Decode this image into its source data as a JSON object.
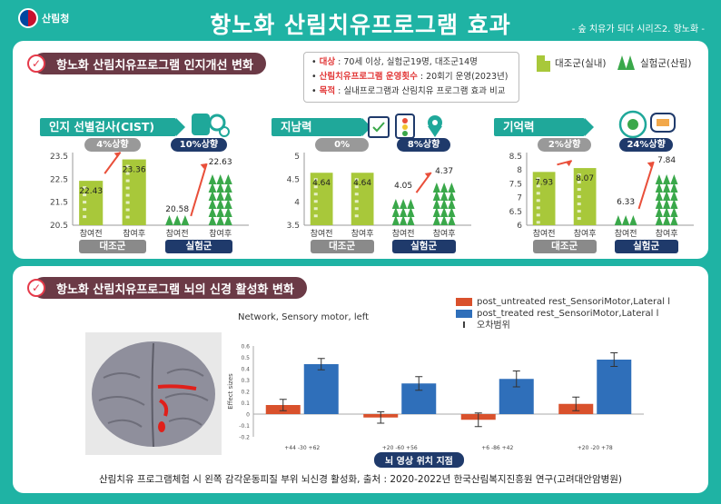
{
  "header": {
    "logo_text": "산림청",
    "title": "항노화 산림치유프로그램 효과",
    "series": "- 숲 치유가 되다 시리즈2. 항노화 -"
  },
  "section1": {
    "title": "항노화 산림치유프로그램 인지개선 변화",
    "info": {
      "line1_label": "대상",
      "line1_value": ": 70세 이상, 실험군19명, 대조군14명",
      "line2_label": "산림치유프로그램 운영횟수",
      "line2_value": ": 20회기 운영(2023년)",
      "line3_label": "목적",
      "line3_value": ": 실내프로그램과 산림치유 프로그램 효과 비교"
    },
    "legend": {
      "control": "대조군(실내)",
      "experimental": "실험군(산림)"
    },
    "colors": {
      "control": "#a8c83a",
      "experimental": "#3aa84a",
      "arrow": "#e94f3a"
    },
    "x_labels": {
      "before": "참여전",
      "after": "참여후"
    },
    "groups": {
      "control": "대조군",
      "experimental": "실험군"
    }
  },
  "section2": {
    "title": "항노화 산림치유프로그램 뇌의 신경 활성화 변화",
    "network_title": "Network, Sensory motor, left",
    "legend": {
      "untreated": "post_untreated rest_SensoriMotor,Lateral l",
      "treated": "post_treated rest_SensoriMotor,Lateral l",
      "error": "오차범위"
    },
    "colors": {
      "untreated": "#d9512c",
      "treated": "#2f6fba"
    },
    "xcaption": "뇌 영상 위치 지점",
    "ylabel": "Effect sizes",
    "footer": "산림치유 프로그램체험 시 왼쪽 감각운동피질 부위 뇌신경 활성화, 출처 : 2020-2022년 한국산림복지진흥원 연구(고려대안암병원)"
  },
  "chart_data": [
    {
      "type": "bar",
      "title": "인지 선별검사(CIST)",
      "categories": [
        "대조군 참여전",
        "대조군 참여후",
        "실험군 참여전",
        "실험군 참여후"
      ],
      "values": [
        22.43,
        23.36,
        20.58,
        22.63
      ],
      "ylim": [
        20.5,
        23.5
      ],
      "yticks": [
        20.5,
        21.5,
        22.5,
        23.5
      ],
      "control_change": "4%상향",
      "experimental_change": "10%상향"
    },
    {
      "type": "bar",
      "title": "지남력",
      "categories": [
        "대조군 참여전",
        "대조군 참여후",
        "실험군 참여전",
        "실험군 참여후"
      ],
      "values": [
        4.64,
        4.64,
        4.05,
        4.37
      ],
      "ylim": [
        3.5,
        5
      ],
      "yticks": [
        3.5,
        4,
        4.5,
        5
      ],
      "control_change": "0%",
      "experimental_change": "8%상향"
    },
    {
      "type": "bar",
      "title": "기억력",
      "categories": [
        "대조군 참여전",
        "대조군 참여후",
        "실험군 참여전",
        "실험군 참여후"
      ],
      "values": [
        7.93,
        8.07,
        6.33,
        7.84
      ],
      "ylim": [
        6,
        8.5
      ],
      "yticks": [
        6,
        6.5,
        7,
        7.5,
        8,
        8.5
      ],
      "control_change": "2%상향",
      "experimental_change": "24%상향"
    },
    {
      "type": "bar",
      "title": "Network, Sensory motor, left",
      "categories": [
        "+44 -30 +62",
        "+20 -60 +56",
        "+6 -86 +42",
        "+20 -20 +78"
      ],
      "series": [
        {
          "name": "post_untreated rest_SensoriMotor,Lateral l",
          "values": [
            0.08,
            -0.03,
            -0.05,
            0.09
          ],
          "errors": [
            0.05,
            0.05,
            0.06,
            0.06
          ]
        },
        {
          "name": "post_treated rest_SensoriMotor,Lateral l",
          "values": [
            0.44,
            0.27,
            0.31,
            0.48
          ],
          "errors": [
            0.05,
            0.06,
            0.07,
            0.06
          ]
        }
      ],
      "ylim": [
        -0.2,
        0.6
      ],
      "yticks": [
        -0.2,
        -0.1,
        0,
        0.1,
        0.2,
        0.3,
        0.4,
        0.5,
        0.6
      ],
      "ylabel": "Effect sizes",
      "xlabel": "뇌 영상 위치 지점"
    }
  ]
}
